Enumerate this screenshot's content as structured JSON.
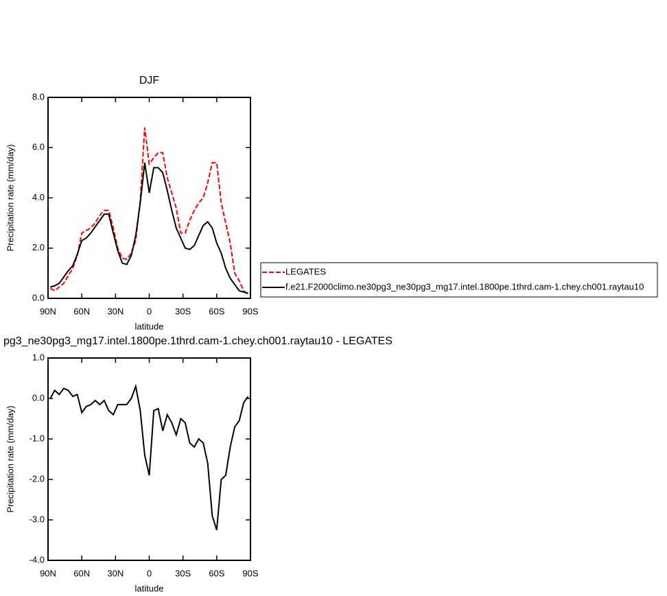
{
  "chart_data": [
    {
      "type": "line",
      "title": "DJF",
      "xlabel": "latitude",
      "ylabel": "Precipitation rate (mm/day)",
      "x": [
        88,
        84,
        80,
        76,
        72,
        68,
        64,
        60,
        56,
        52,
        48,
        44,
        40,
        36,
        32,
        28,
        24,
        20,
        16,
        12,
        8,
        4,
        0,
        -4,
        -8,
        -12,
        -16,
        -20,
        -24,
        -28,
        -32,
        -36,
        -40,
        -44,
        -48,
        -52,
        -56,
        -60,
        -64,
        -68,
        -72,
        -76,
        -80,
        -84,
        -88
      ],
      "xlim": [
        90,
        -90
      ],
      "xticks": [
        {
          "value": 90,
          "label": "90N"
        },
        {
          "value": 60,
          "label": "60N"
        },
        {
          "value": 30,
          "label": "30N"
        },
        {
          "value": 0,
          "label": "0"
        },
        {
          "value": -30,
          "label": "30S"
        },
        {
          "value": -60,
          "label": "60S"
        },
        {
          "value": -90,
          "label": "90S"
        }
      ],
      "ylim": [
        0,
        8
      ],
      "yticks": [
        {
          "value": 0,
          "label": "0.0"
        },
        {
          "value": 2,
          "label": "2.0"
        },
        {
          "value": 4,
          "label": "4.0"
        },
        {
          "value": 6,
          "label": "6.0"
        },
        {
          "value": 8,
          "label": "8.0"
        }
      ],
      "legend": "right",
      "series": [
        {
          "name": "LEGATES",
          "color": "#ff0000",
          "line_style": "dashed",
          "values": [
            0.4,
            0.3,
            0.45,
            0.6,
            0.9,
            1.2,
            1.7,
            2.6,
            2.7,
            2.8,
            3.0,
            3.3,
            3.5,
            3.5,
            2.8,
            2.0,
            1.6,
            1.55,
            1.8,
            2.3,
            3.9,
            6.8,
            5.35,
            5.6,
            5.8,
            5.8,
            4.8,
            4.2,
            3.6,
            2.6,
            2.6,
            3.1,
            3.5,
            3.8,
            4.0,
            4.6,
            5.4,
            5.4,
            3.8,
            3.0,
            2.2,
            1.0,
            0.7,
            0.3,
            0.15
          ]
        },
        {
          "name": "f.e21.F2000climo.ne30pg3_ne30pg3_mg17.intel.1800pe.1thrd.cam-1.chey.ch001.raytau10",
          "color": "#000000",
          "line_style": "solid",
          "values": [
            0.45,
            0.5,
            0.6,
            0.85,
            1.1,
            1.3,
            1.75,
            2.3,
            2.4,
            2.6,
            2.85,
            3.1,
            3.35,
            3.35,
            2.6,
            1.9,
            1.4,
            1.35,
            1.7,
            2.5,
            3.8,
            5.4,
            4.2,
            5.2,
            5.2,
            5.0,
            4.3,
            3.5,
            2.8,
            2.4,
            2.0,
            1.95,
            2.1,
            2.5,
            2.9,
            3.05,
            2.8,
            2.2,
            1.8,
            1.2,
            0.8,
            0.55,
            0.3,
            0.25,
            0.2
          ]
        }
      ]
    },
    {
      "type": "line",
      "title": "pg3_ne30pg3_mg17.intel.1800pe.1thrd.cam-1.chey.ch001.raytau10 - LEGATES",
      "xlabel": "latitude",
      "ylabel": "Precipitation rate (mm/day)",
      "x": [
        88,
        84,
        80,
        76,
        72,
        68,
        64,
        60,
        56,
        52,
        48,
        44,
        40,
        36,
        32,
        28,
        24,
        20,
        16,
        12,
        8,
        4,
        0,
        -4,
        -8,
        -12,
        -16,
        -20,
        -24,
        -28,
        -32,
        -36,
        -40,
        -44,
        -48,
        -52,
        -56,
        -60,
        -64,
        -68,
        -72,
        -76,
        -80,
        -84,
        -88
      ],
      "xlim": [
        90,
        -90
      ],
      "xticks": [
        {
          "value": 90,
          "label": "90N"
        },
        {
          "value": 60,
          "label": "60N"
        },
        {
          "value": 30,
          "label": "30N"
        },
        {
          "value": 0,
          "label": "0"
        },
        {
          "value": -30,
          "label": "30S"
        },
        {
          "value": -60,
          "label": "60S"
        },
        {
          "value": -90,
          "label": "90S"
        }
      ],
      "ylim": [
        -4,
        1
      ],
      "yticks": [
        {
          "value": -4,
          "label": "-4.0"
        },
        {
          "value": -3,
          "label": "-3.0"
        },
        {
          "value": -2,
          "label": "-2.0"
        },
        {
          "value": -1,
          "label": "-1.0"
        },
        {
          "value": 0,
          "label": "0.0"
        },
        {
          "value": 1,
          "label": "1.0"
        }
      ],
      "series": [
        {
          "color": "#000000",
          "line_style": "solid",
          "values": [
            0.0,
            0.2,
            0.1,
            0.25,
            0.2,
            0.05,
            0.1,
            -0.35,
            -0.2,
            -0.15,
            -0.05,
            -0.15,
            -0.05,
            -0.3,
            -0.4,
            -0.15,
            -0.15,
            -0.15,
            0.0,
            0.3,
            -0.3,
            -1.4,
            -1.9,
            -0.3,
            -0.25,
            -0.8,
            -0.4,
            -0.6,
            -0.9,
            -0.5,
            -0.6,
            -1.1,
            -1.2,
            -1.0,
            -1.1,
            -1.6,
            -2.9,
            -3.25,
            -2.0,
            -1.9,
            -1.2,
            -0.7,
            -0.55,
            -0.1,
            0.05
          ]
        }
      ]
    }
  ]
}
